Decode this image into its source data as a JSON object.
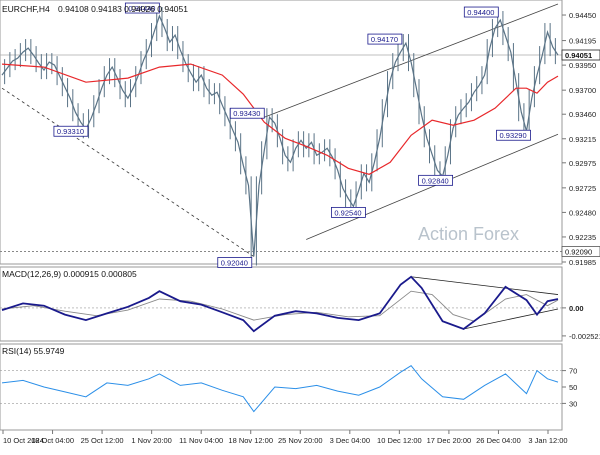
{
  "header": {
    "symbol_info": "EURCHF,H4",
    "ohlc": "0.94108 0.94183 0.94026 0.94051"
  },
  "watermark": "Action Forex",
  "colors": {
    "price": "#5a7386",
    "ma": "#e8282b",
    "macd": "#1a1a8c",
    "signal": "#8a8a8a",
    "rsi": "#2b8fe8",
    "box": "#1a1a8c",
    "grid": "#9a9a9a"
  },
  "chart_data": [
    {
      "type": "line",
      "panel": "price",
      "title": "EURCHF,H4",
      "x_labels": [
        "10 Oct 2024",
        "18 Oct 04:00",
        "25 Oct 12:00",
        "1 Nov 20:00",
        "11 Nov 04:00",
        "18 Nov 12:00",
        "25 Nov 20:00",
        "3 Dec 04:00",
        "10 Dec 12:00",
        "17 Dec 20:00",
        "26 Dec 04:00",
        "3 Jan 12:00"
      ],
      "y_ticks": [
        "0.94450",
        "0.94195",
        "0.93950",
        "0.93700",
        "0.93460",
        "0.93215",
        "0.92975",
        "0.92725",
        "0.92480",
        "0.92235",
        "0.91985"
      ],
      "ylim": [
        0.91985,
        0.9458
      ],
      "current_price": "0.94051",
      "level_line": "0.92090",
      "annotations": [
        "0.94440",
        "0.93310",
        "0.93430",
        "0.92040",
        "0.92540",
        "0.94170",
        "0.92840",
        "0.94400",
        "0.93290"
      ],
      "series": [
        {
          "kind": "price",
          "points": [
            [
              0,
              0.9385
            ],
            [
              1,
              0.9392
            ],
            [
              2,
              0.9399
            ],
            [
              3,
              0.9402
            ],
            [
              4,
              0.9408
            ],
            [
              5,
              0.9412
            ],
            [
              6,
              0.9405
            ],
            [
              7,
              0.9397
            ],
            [
              8,
              0.939
            ],
            [
              9,
              0.9398
            ],
            [
              10,
              0.9395
            ],
            [
              11,
              0.9384
            ],
            [
              12,
              0.9373
            ],
            [
              13,
              0.9362
            ],
            [
              14,
              0.9348
            ],
            [
              15,
              0.9338
            ],
            [
              16,
              0.9331
            ],
            [
              17,
              0.9342
            ],
            [
              18,
              0.9356
            ],
            [
              19,
              0.9372
            ],
            [
              20,
              0.9385
            ],
            [
              21,
              0.9393
            ],
            [
              22,
              0.9382
            ],
            [
              23,
              0.937
            ],
            [
              24,
              0.9362
            ],
            [
              25,
              0.9372
            ],
            [
              26,
              0.9385
            ],
            [
              27,
              0.94
            ],
            [
              28,
              0.9412
            ],
            [
              29,
              0.9428
            ],
            [
              30,
              0.9444
            ],
            [
              31,
              0.9432
            ],
            [
              32,
              0.9418
            ],
            [
              33,
              0.9425
            ],
            [
              34,
              0.941
            ],
            [
              35,
              0.9397
            ],
            [
              36,
              0.9387
            ],
            [
              37,
              0.9378
            ],
            [
              38,
              0.9385
            ],
            [
              39,
              0.9372
            ],
            [
              40,
              0.9365
            ],
            [
              41,
              0.9368
            ],
            [
              42,
              0.9355
            ],
            [
              43,
              0.9343
            ],
            [
              44,
              0.933
            ],
            [
              45,
              0.9318
            ],
            [
              46,
              0.9295
            ],
            [
              47,
              0.9275
            ],
            [
              48,
              0.9204
            ],
            [
              49,
              0.9275
            ],
            [
              50,
              0.931
            ],
            [
              51,
              0.9343
            ],
            [
              52,
              0.9337
            ],
            [
              53,
              0.9322
            ],
            [
              54,
              0.9305
            ],
            [
              55,
              0.9298
            ],
            [
              56,
              0.9312
            ],
            [
              57,
              0.932
            ],
            [
              58,
              0.9312
            ],
            [
              59,
              0.9318
            ],
            [
              60,
              0.9305
            ],
            [
              61,
              0.9308
            ],
            [
              62,
              0.9312
            ],
            [
              63,
              0.9303
            ],
            [
              64,
              0.929
            ],
            [
              65,
              0.9272
            ],
            [
              66,
              0.9262
            ],
            [
              67,
              0.9254
            ],
            [
              68,
              0.927
            ],
            [
              69,
              0.9287
            ],
            [
              70,
              0.9278
            ],
            [
              71,
              0.9298
            ],
            [
              72,
              0.9322
            ],
            [
              73,
              0.9352
            ],
            [
              74,
              0.938
            ],
            [
              75,
              0.9398
            ],
            [
              76,
              0.9408
            ],
            [
              77,
              0.9417
            ],
            [
              78,
              0.9398
            ],
            [
              79,
              0.9372
            ],
            [
              80,
              0.9345
            ],
            [
              81,
              0.9322
            ],
            [
              82,
              0.9306
            ],
            [
              83,
              0.929
            ],
            [
              84,
              0.9284
            ],
            [
              85,
              0.9305
            ],
            [
              86,
              0.9332
            ],
            [
              87,
              0.9345
            ],
            [
              88,
              0.9352
            ],
            [
              89,
              0.9358
            ],
            [
              90,
              0.9368
            ],
            [
              91,
              0.9375
            ],
            [
              92,
              0.9385
            ],
            [
              93,
              0.9412
            ],
            [
              94,
              0.9432
            ],
            [
              95,
              0.944
            ],
            [
              96,
              0.9424
            ],
            [
              97,
              0.9408
            ],
            [
              98,
              0.9378
            ],
            [
              99,
              0.9348
            ],
            [
              100,
              0.9329
            ],
            [
              101,
              0.9362
            ],
            [
              102,
              0.9385
            ],
            [
              103,
              0.9405
            ],
            [
              104,
              0.9428
            ],
            [
              105,
              0.9413
            ],
            [
              106,
              0.9405
            ]
          ]
        },
        {
          "kind": "moving_average",
          "points": [
            [
              0,
              0.9396
            ],
            [
              8,
              0.9393
            ],
            [
              16,
              0.9378
            ],
            [
              24,
              0.9382
            ],
            [
              30,
              0.9393
            ],
            [
              36,
              0.9396
            ],
            [
              42,
              0.9385
            ],
            [
              46,
              0.9366
            ],
            [
              50,
              0.9338
            ],
            [
              54,
              0.9322
            ],
            [
              58,
              0.9314
            ],
            [
              62,
              0.9305
            ],
            [
              66,
              0.9292
            ],
            [
              70,
              0.9286
            ],
            [
              74,
              0.9298
            ],
            [
              78,
              0.9325
            ],
            [
              82,
              0.934
            ],
            [
              86,
              0.9335
            ],
            [
              90,
              0.934
            ],
            [
              94,
              0.9352
            ],
            [
              98,
              0.9372
            ],
            [
              100,
              0.9372
            ],
            [
              102,
              0.9367
            ],
            [
              104,
              0.9378
            ],
            [
              106,
              0.9384
            ]
          ]
        }
      ]
    },
    {
      "type": "line",
      "panel": "macd",
      "title": "MACD(12,26,9) 0.000915 0.000805",
      "y_ticks": [
        "0.00",
        "-0.002521"
      ],
      "ylim": [
        -0.0028,
        0.0035
      ],
      "series": [
        {
          "kind": "macd",
          "points": [
            [
              0,
              -0.0002
            ],
            [
              4,
              0.0004
            ],
            [
              8,
              0.0002
            ],
            [
              12,
              -0.0006
            ],
            [
              16,
              -0.0011
            ],
            [
              20,
              -0.0005
            ],
            [
              24,
              0.0001
            ],
            [
              28,
              0.0009
            ],
            [
              30,
              0.0015
            ],
            [
              34,
              0.0006
            ],
            [
              38,
              0.0003
            ],
            [
              42,
              -0.0004
            ],
            [
              46,
              -0.0011
            ],
            [
              48,
              -0.0021
            ],
            [
              52,
              -0.0007
            ],
            [
              56,
              -0.0003
            ],
            [
              60,
              -0.0005
            ],
            [
              64,
              -0.0009
            ],
            [
              68,
              -0.0011
            ],
            [
              72,
              -0.0005
            ],
            [
              76,
              0.0021
            ],
            [
              78,
              0.0028
            ],
            [
              80,
              0.0018
            ],
            [
              84,
              -0.0012
            ],
            [
              88,
              -0.0019
            ],
            [
              92,
              -0.0005
            ],
            [
              96,
              0.0019
            ],
            [
              100,
              0.0007
            ],
            [
              102,
              -0.0006
            ],
            [
              104,
              0.0006
            ],
            [
              106,
              0.0008
            ]
          ]
        },
        {
          "kind": "signal",
          "points": [
            [
              0,
              -0.0001
            ],
            [
              6,
              0.0002
            ],
            [
              12,
              -0.0003
            ],
            [
              18,
              -0.0007
            ],
            [
              24,
              -0.0002
            ],
            [
              30,
              0.0008
            ],
            [
              36,
              0.0006
            ],
            [
              42,
              -0.0001
            ],
            [
              48,
              -0.0011
            ],
            [
              54,
              -0.0006
            ],
            [
              60,
              -0.0004
            ],
            [
              66,
              -0.0008
            ],
            [
              72,
              -0.0007
            ],
            [
              78,
              0.0015
            ],
            [
              82,
              0.0012
            ],
            [
              86,
              -0.0006
            ],
            [
              90,
              -0.0012
            ],
            [
              96,
              0.0008
            ],
            [
              100,
              0.0012
            ],
            [
              104,
              0.0002
            ],
            [
              106,
              0.0007
            ]
          ]
        }
      ]
    },
    {
      "type": "line",
      "panel": "rsi",
      "title": "RSI(14) 55.9749",
      "y_ticks": [
        "70",
        "50",
        "30"
      ],
      "ylim": [
        0,
        100
      ],
      "series": [
        {
          "kind": "rsi",
          "points": [
            [
              0,
              55
            ],
            [
              4,
              58
            ],
            [
              8,
              50
            ],
            [
              12,
              44
            ],
            [
              16,
              38
            ],
            [
              20,
              55
            ],
            [
              24,
              52
            ],
            [
              28,
              60
            ],
            [
              30,
              66
            ],
            [
              34,
              52
            ],
            [
              38,
              55
            ],
            [
              42,
              46
            ],
            [
              46,
              38
            ],
            [
              48,
              20
            ],
            [
              52,
              50
            ],
            [
              56,
              48
            ],
            [
              60,
              52
            ],
            [
              64,
              45
            ],
            [
              68,
              40
            ],
            [
              72,
              50
            ],
            [
              76,
              68
            ],
            [
              78,
              76
            ],
            [
              80,
              60
            ],
            [
              84,
              38
            ],
            [
              88,
              35
            ],
            [
              92,
              52
            ],
            [
              96,
              66
            ],
            [
              100,
              42
            ],
            [
              102,
              70
            ],
            [
              104,
              60
            ],
            [
              106,
              56
            ]
          ]
        }
      ]
    }
  ]
}
